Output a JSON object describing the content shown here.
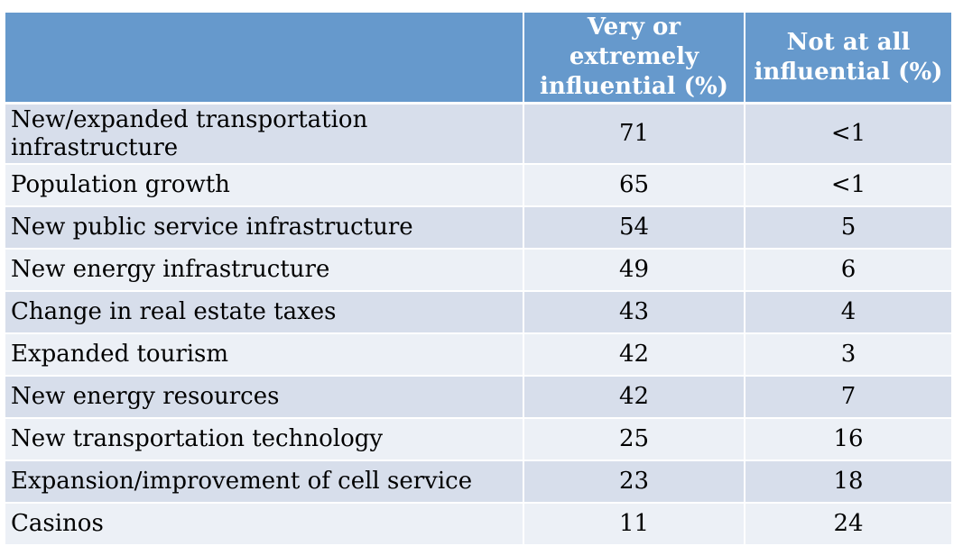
{
  "table": {
    "headers": [
      "",
      "Very or extremely influential (%)",
      "Not at all influential (%)"
    ],
    "header_lines": {
      "very": [
        "Very or extremely",
        "influential (%)"
      ],
      "not": [
        "Not at all",
        "influential (%)"
      ]
    },
    "rows": [
      {
        "factor": "New/expanded transportation infrastructure",
        "very": "71",
        "not": "<1"
      },
      {
        "factor": "Population growth",
        "very": "65",
        "not": "<1"
      },
      {
        "factor": "New public service infrastructure",
        "very": "54",
        "not": "5"
      },
      {
        "factor": "New energy infrastructure",
        "very": "49",
        "not": "6"
      },
      {
        "factor": "Change in real estate taxes",
        "very": "43",
        "not": "4"
      },
      {
        "factor": "Expanded tourism",
        "very": "42",
        "not": "3"
      },
      {
        "factor": "New energy resources",
        "very": "42",
        "not": "7"
      },
      {
        "factor": "New transportation technology",
        "very": "25",
        "not": "16"
      },
      {
        "factor": "Expansion/improvement of cell service",
        "very": "23",
        "not": "18"
      },
      {
        "factor": "Casinos",
        "very": "11",
        "not": "24"
      }
    ]
  },
  "colors": {
    "header_bg": "#6699cc",
    "header_text": "#ffffff",
    "row_dark": "#d7deeb",
    "row_light": "#ecf0f6"
  }
}
